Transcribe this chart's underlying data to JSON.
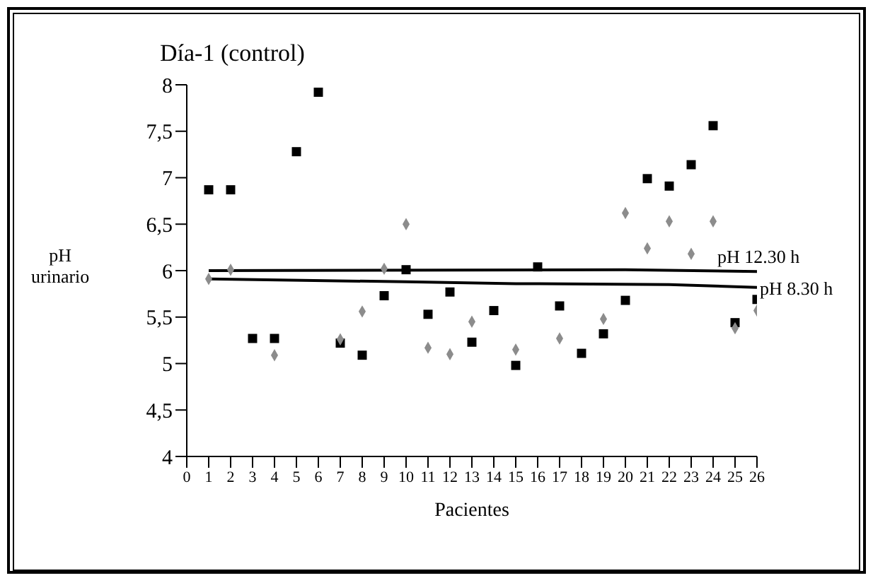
{
  "chart_data": {
    "type": "scatter",
    "title": "Día-1 (control)",
    "xlabel": "Pacientes",
    "ylabel": "pH urinario",
    "x": [
      1,
      2,
      3,
      4,
      5,
      6,
      7,
      8,
      9,
      10,
      11,
      12,
      13,
      14,
      15,
      16,
      17,
      18,
      19,
      20,
      21,
      22,
      23,
      24,
      25,
      26
    ],
    "series": [
      {
        "color": "#000000",
        "marker": "square",
        "values": [
          6.87,
          6.87,
          5.27,
          5.27,
          7.28,
          7.92,
          5.22,
          5.09,
          5.73,
          6.01,
          5.53,
          5.77,
          5.23,
          5.57,
          4.98,
          6.04,
          5.62,
          5.11,
          5.32,
          5.68,
          6.99,
          6.91,
          7.14,
          7.56,
          5.44,
          5.69
        ]
      },
      {
        "color": "#8c8c8c",
        "marker": "diamond",
        "values": [
          5.91,
          6.01,
          null,
          5.09,
          null,
          null,
          5.26,
          5.56,
          6.02,
          6.5,
          5.17,
          5.1,
          5.45,
          null,
          5.15,
          null,
          5.27,
          null,
          5.48,
          6.62,
          6.24,
          6.53,
          6.18,
          6.53,
          5.38,
          5.57
        ]
      },
      {
        "type": "line",
        "name": "pH 12.30 h",
        "color": "#000000",
        "line_style": "solid",
        "marker": "none",
        "x": [
          1,
          20,
          26
        ],
        "values": [
          6.0,
          6.01,
          5.99
        ]
      },
      {
        "type": "line",
        "name": "pH 8.30 h",
        "color": "#000000",
        "line_style": "solid",
        "marker": "none",
        "x": [
          1,
          10,
          15,
          22,
          26
        ],
        "values": [
          5.91,
          5.88,
          5.86,
          5.85,
          5.82
        ]
      }
    ],
    "xlim": [
      0,
      26
    ],
    "xticks": [
      0,
      1,
      2,
      3,
      4,
      5,
      6,
      7,
      8,
      9,
      10,
      11,
      12,
      13,
      14,
      15,
      16,
      17,
      18,
      19,
      20,
      21,
      22,
      23,
      24,
      25,
      26
    ],
    "ylim": [
      4,
      8
    ],
    "yticks": [
      4,
      {
        "value": 4.5,
        "label": "4,5"
      },
      5,
      {
        "value": 5.5,
        "label": "5,5"
      },
      6,
      {
        "value": 6.5,
        "label": "6,5"
      },
      7,
      {
        "value": 7.5,
        "label": "7,5"
      },
      8
    ],
    "grid": false,
    "legend": false
  }
}
